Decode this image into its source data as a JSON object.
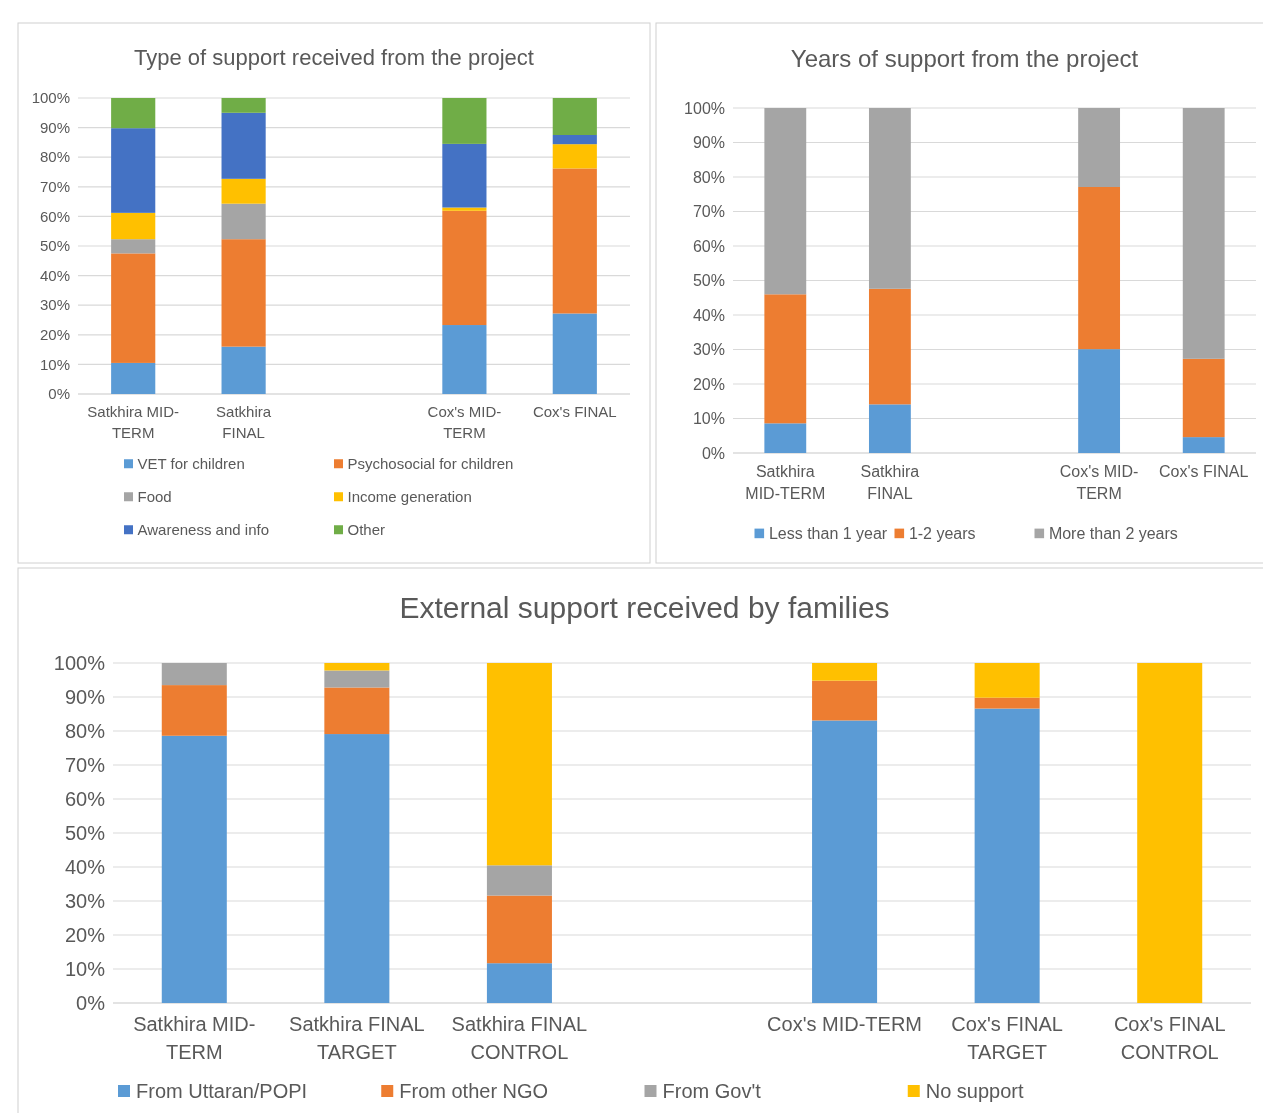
{
  "chart_data": [
    {
      "type": "bar",
      "stacked": true,
      "title": "Type of support received from the project",
      "categories": [
        "Satkhira MID-TERM",
        "Satkhira FINAL",
        null,
        "Cox's MID-TERM",
        "Cox's FINAL"
      ],
      "ylim": [
        0,
        100
      ],
      "yticks": [
        {
          "value": 0,
          "label": "0%"
        },
        {
          "value": 10,
          "label": "10%"
        },
        {
          "value": 20,
          "label": "20%"
        },
        {
          "value": 30,
          "label": "30%"
        },
        {
          "value": 40,
          "label": "40%"
        },
        {
          "value": 50,
          "label": "50%"
        },
        {
          "value": 60,
          "label": "60%"
        },
        {
          "value": 70,
          "label": "70%"
        },
        {
          "value": 80,
          "label": "80%"
        },
        {
          "value": 90,
          "label": "90%"
        },
        {
          "value": 100,
          "label": "100%"
        }
      ],
      "grid": "y",
      "legend": "bottom",
      "series": [
        {
          "name": "VET for children",
          "color": "#5b9bd5",
          "values": [
            10.5,
            16,
            null,
            23.3,
            27.2
          ]
        },
        {
          "name": "Psychosocial for children",
          "color": "#ed7d31",
          "values": [
            37,
            36.3,
            null,
            38.6,
            49
          ]
        },
        {
          "name": "Food",
          "color": "#a5a5a5",
          "values": [
            4.8,
            12,
            null,
            0,
            0
          ]
        },
        {
          "name": "Income generation",
          "color": "#ffc000",
          "values": [
            8.9,
            8.4,
            null,
            1.1,
            8.2
          ]
        },
        {
          "name": "Awareness and info",
          "color": "#4472c4",
          "values": [
            28.6,
            22.3,
            null,
            21.5,
            3.1
          ]
        },
        {
          "name": "Other",
          "color": "#70ad47",
          "values": [
            10.2,
            5,
            null,
            15.5,
            12.5
          ]
        }
      ]
    },
    {
      "type": "bar",
      "stacked": true,
      "title": "Years of support from the project",
      "categories": [
        "Satkhira MID-TERM",
        "Satkhira FINAL",
        null,
        "Cox's MID-TERM",
        "Cox's FINAL"
      ],
      "ylim": [
        0,
        100
      ],
      "yticks": [
        {
          "value": 0,
          "label": "0%"
        },
        {
          "value": 10,
          "label": "10%"
        },
        {
          "value": 20,
          "label": "20%"
        },
        {
          "value": 30,
          "label": "30%"
        },
        {
          "value": 40,
          "label": "40%"
        },
        {
          "value": 50,
          "label": "50%"
        },
        {
          "value": 60,
          "label": "60%"
        },
        {
          "value": 70,
          "label": "70%"
        },
        {
          "value": 80,
          "label": "80%"
        },
        {
          "value": 90,
          "label": "90%"
        },
        {
          "value": 100,
          "label": "100%"
        }
      ],
      "grid": "y",
      "legend": "bottom",
      "series": [
        {
          "name": "Less than 1 year",
          "color": "#5b9bd5",
          "values": [
            8.6,
            14.1,
            null,
            30.1,
            4.6
          ]
        },
        {
          "name": "1-2 years",
          "color": "#ed7d31",
          "values": [
            37.4,
            33.5,
            null,
            47,
            22.7
          ]
        },
        {
          "name": "More than 2 years",
          "color": "#a5a5a5",
          "values": [
            54,
            52.4,
            null,
            22.9,
            72.7
          ]
        }
      ]
    },
    {
      "type": "bar",
      "stacked": true,
      "title": "External support received by families",
      "categories": [
        "Satkhira MID-TERM",
        "Satkhira FINAL TARGET",
        "Satkhira FINAL CONTROL",
        null,
        "Cox's MID-TERM",
        "Cox's FINAL TARGET",
        "Cox's FINAL CONTROL"
      ],
      "ylim": [
        0,
        100
      ],
      "yticks": [
        {
          "value": 0,
          "label": "0%"
        },
        {
          "value": 10,
          "label": "10%"
        },
        {
          "value": 20,
          "label": "20%"
        },
        {
          "value": 30,
          "label": "30%"
        },
        {
          "value": 40,
          "label": "40%"
        },
        {
          "value": 50,
          "label": "50%"
        },
        {
          "value": 60,
          "label": "60%"
        },
        {
          "value": 70,
          "label": "70%"
        },
        {
          "value": 80,
          "label": "80%"
        },
        {
          "value": 90,
          "label": "90%"
        },
        {
          "value": 100,
          "label": "100%"
        }
      ],
      "grid": "y",
      "legend": "bottom",
      "series": [
        {
          "name": "From Uttaran/POPI",
          "color": "#5b9bd5",
          "values": [
            78.6,
            79.1,
            11.7,
            null,
            83.1,
            86.6,
            0
          ]
        },
        {
          "name": "From other NGO",
          "color": "#ed7d31",
          "values": [
            14.9,
            13.7,
            19.9,
            null,
            11.7,
            3.2,
            0
          ]
        },
        {
          "name": "From Gov't",
          "color": "#a5a5a5",
          "values": [
            6.5,
            5,
            8.9,
            null,
            0,
            0,
            0
          ]
        },
        {
          "name": "No support",
          "color": "#ffc000",
          "values": [
            0,
            2.2,
            59.5,
            null,
            5.2,
            10.2,
            100
          ]
        }
      ]
    }
  ]
}
